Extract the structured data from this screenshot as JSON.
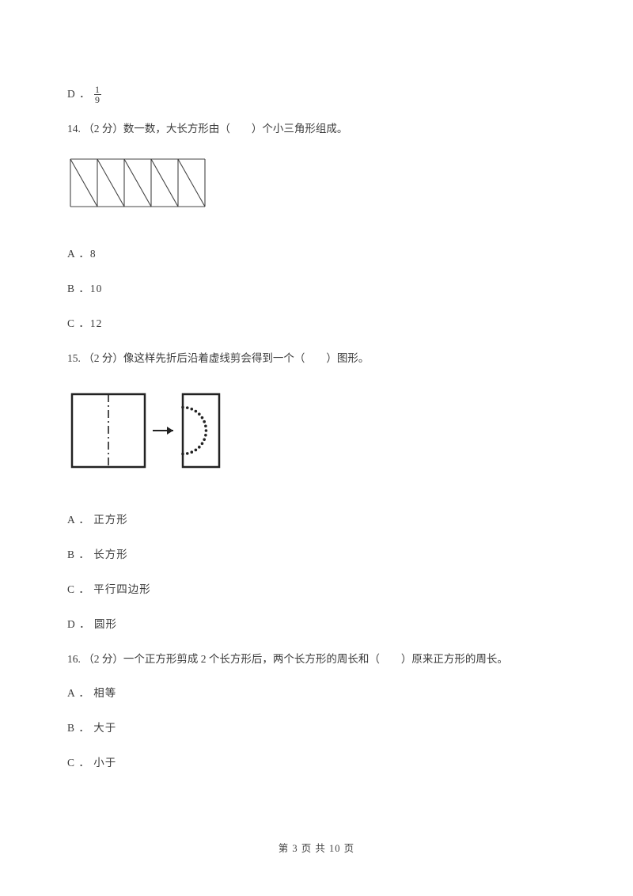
{
  "optD_prefix": "D ．",
  "optD_frac_num": "1",
  "optD_frac_den": "9",
  "q14": {
    "stem": "14.  （2 分）数一数，大长方形由（　　）个小三角形组成。",
    "optA": "A ．8",
    "optB": "B ．10",
    "optC": "C ．12",
    "fig": {
      "width": 178,
      "height": 66,
      "stroke": "#444444",
      "strokeWidth": 1.1,
      "cols": 5
    }
  },
  "q15": {
    "stem": "15.  （2 分）像这样先折后沿着虚线剪会得到一个（　　）图形。",
    "optA": "A ． 正方形",
    "optB": "B ． 长方形",
    "optC": "C ． 平行四边形",
    "optD": "D ． 圆形",
    "fig": {
      "stroke": "#222222",
      "strokeWidth": 2.5,
      "dash": "3 5"
    }
  },
  "q16": {
    "stem": "16.  （2 分）一个正方形剪成 2 个长方形后，两个长方形的周长和（　　）原来正方形的周长。",
    "optA": "A ． 相等",
    "optB": "B ． 大于",
    "optC": "C ． 小于"
  },
  "footer": "第  3  页  共  10  页"
}
